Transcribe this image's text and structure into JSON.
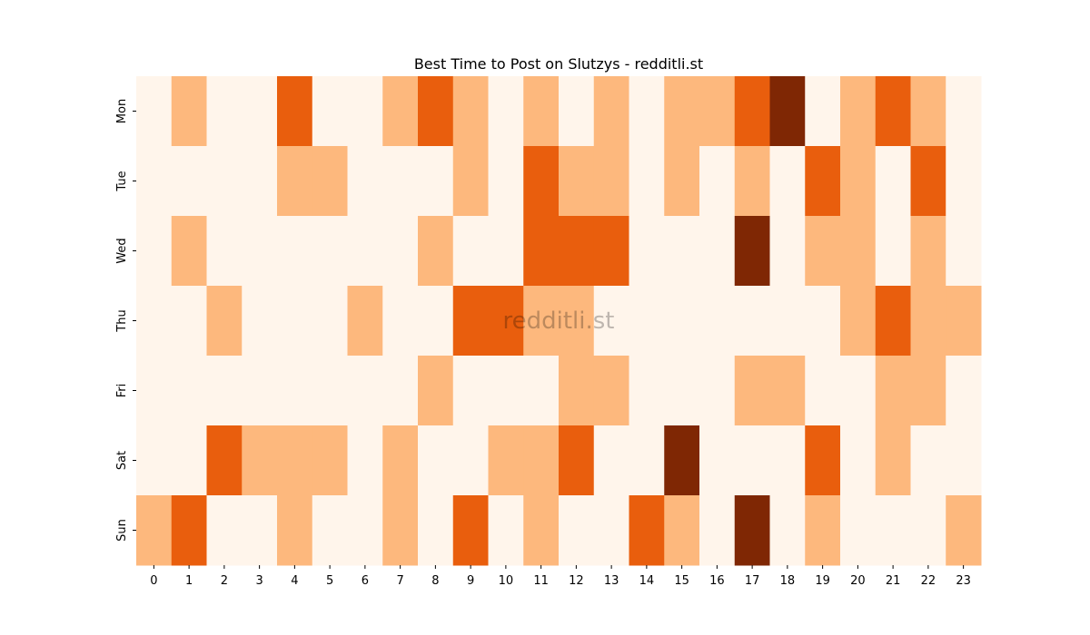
{
  "chart_data": {
    "type": "heatmap",
    "title": "Best Time to Post on Slutzys - redditli.st",
    "watermark": "redditli.st",
    "xlabel": "",
    "ylabel": "",
    "x": [
      "0",
      "1",
      "2",
      "3",
      "4",
      "5",
      "6",
      "7",
      "8",
      "9",
      "10",
      "11",
      "12",
      "13",
      "14",
      "15",
      "16",
      "17",
      "18",
      "19",
      "20",
      "21",
      "22",
      "23"
    ],
    "y": [
      "Mon",
      "Tue",
      "Wed",
      "Thu",
      "Fri",
      "Sat",
      "Sun"
    ],
    "levels": [
      0,
      1,
      2,
      3
    ],
    "colors": [
      "#fff5eb",
      "#fdb87d",
      "#e95e0d",
      "#7f2704"
    ],
    "legend": "none",
    "grid": false,
    "values": [
      [
        0,
        1,
        0,
        0,
        2,
        0,
        0,
        1,
        2,
        1,
        0,
        1,
        0,
        1,
        0,
        1,
        1,
        2,
        3,
        0,
        1,
        2,
        1,
        0
      ],
      [
        0,
        0,
        0,
        0,
        1,
        1,
        0,
        0,
        0,
        1,
        0,
        2,
        1,
        1,
        0,
        1,
        0,
        1,
        0,
        2,
        1,
        0,
        2,
        0
      ],
      [
        0,
        1,
        0,
        0,
        0,
        0,
        0,
        0,
        1,
        0,
        0,
        2,
        2,
        2,
        0,
        0,
        0,
        3,
        0,
        1,
        1,
        0,
        1,
        0
      ],
      [
        0,
        0,
        1,
        0,
        0,
        0,
        1,
        0,
        0,
        2,
        2,
        1,
        1,
        0,
        0,
        0,
        0,
        0,
        0,
        0,
        1,
        2,
        1,
        1
      ],
      [
        0,
        0,
        0,
        0,
        0,
        0,
        0,
        0,
        1,
        0,
        0,
        0,
        1,
        1,
        0,
        0,
        0,
        1,
        1,
        0,
        0,
        1,
        1,
        0
      ],
      [
        0,
        0,
        2,
        1,
        1,
        1,
        0,
        1,
        0,
        0,
        1,
        1,
        2,
        0,
        0,
        3,
        0,
        0,
        0,
        2,
        0,
        1,
        0,
        0
      ],
      [
        1,
        2,
        0,
        0,
        1,
        0,
        0,
        1,
        0,
        2,
        0,
        1,
        0,
        0,
        2,
        1,
        0,
        3,
        0,
        1,
        0,
        0,
        0,
        1
      ]
    ]
  }
}
